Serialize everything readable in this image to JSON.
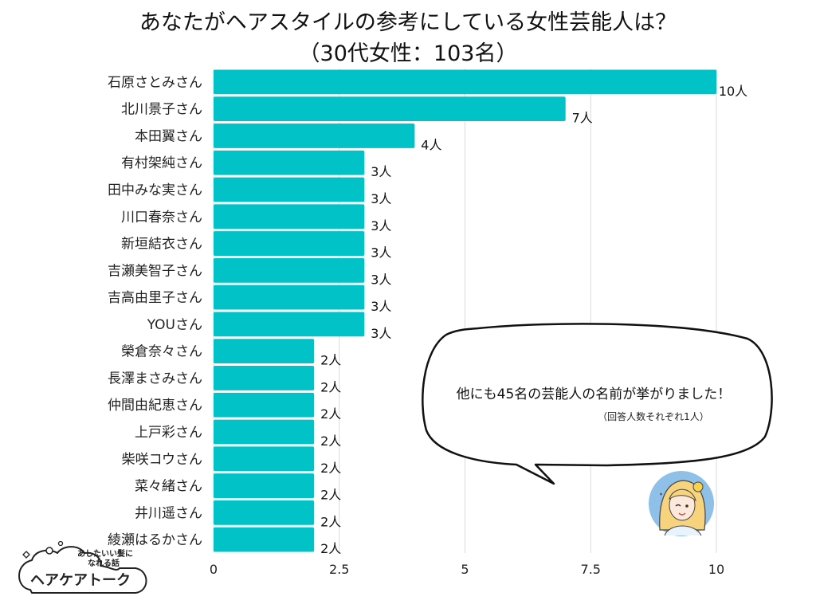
{
  "chart_data": {
    "type": "bar",
    "orientation": "horizontal",
    "title_line1": "あなたがヘアスタイルの参考にしている女性芸能人は？",
    "title_line2": "（30代女性：103名）",
    "categories": [
      "石原さとみさん",
      "北川景子さん",
      "本田翼さん",
      "有村架純さん",
      "田中みな実さん",
      "川口春奈さん",
      "新垣結衣さん",
      "吉瀬美智子さん",
      "吉高由里子さん",
      "YOUさん",
      "榮倉奈々さん",
      "長澤まさみさん",
      "仲間由紀恵さん",
      "上戸彩さん",
      "柴咲コウさん",
      "菜々緒さん",
      "井川遥さん",
      "綾瀬はるかさん"
    ],
    "values": [
      10,
      7,
      4,
      3,
      3,
      3,
      3,
      3,
      3,
      3,
      2,
      2,
      2,
      2,
      2,
      2,
      2,
      2
    ],
    "value_labels": [
      "10人",
      "7人",
      "4人",
      "3人",
      "3人",
      "3人",
      "3人",
      "3人",
      "3人",
      "3人",
      "2人",
      "2人",
      "2人",
      "2人",
      "2人",
      "2人",
      "2人",
      "2人"
    ],
    "xlim": [
      0,
      10
    ],
    "xticks": [
      0,
      2.5,
      5,
      7.5,
      10
    ],
    "xtick_labels": [
      "0",
      "2.5",
      "5",
      "7.5",
      "10"
    ],
    "grid": true,
    "colors": {
      "bar": "#00C2C7",
      "grid": "#d9d9d9"
    },
    "annotation": {
      "main": "他にも45名の芸能人の名前が挙がりました！",
      "sub": "（回答人数それぞれ1人）"
    }
  },
  "logo": {
    "line1": "あしたいい髪に",
    "line2": "なれる話",
    "name": "ヘアケアトーク"
  },
  "avatar": {
    "icon": "woman-winking-icon",
    "bg": "#8EC0E8"
  }
}
